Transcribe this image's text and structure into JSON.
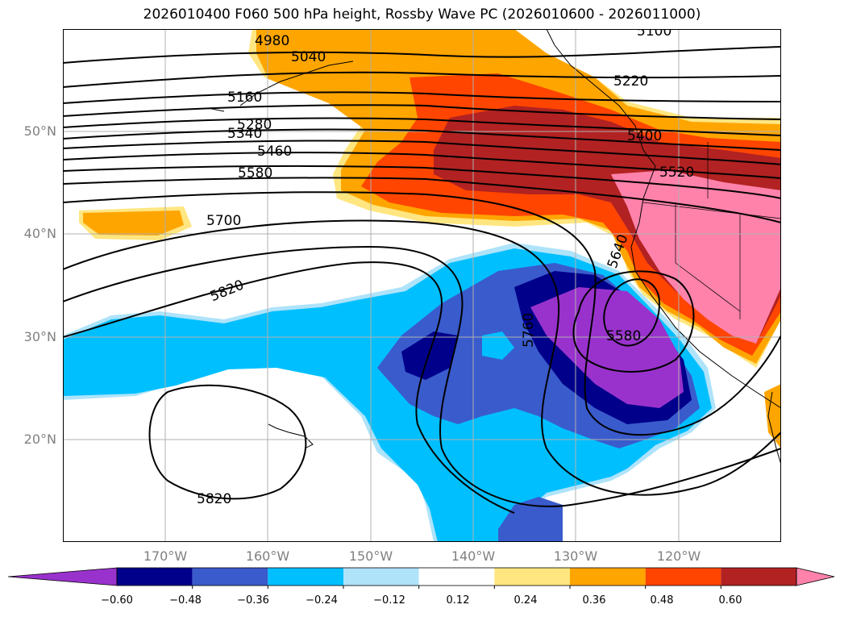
{
  "title": "2026010400 F060 500 hPa height, Rossby Wave PC (2026010600 - 2026011000)",
  "map": {
    "lat_range": [
      10,
      60
    ],
    "lon_range": [
      -180,
      -110
    ],
    "lat_labels": [
      "50°N",
      "40°N",
      "30°N",
      "20°N"
    ],
    "lon_labels": [
      "170°W",
      "160°W",
      "150°W",
      "140°W",
      "130°W",
      "120°W"
    ],
    "grid": true,
    "contour_labels": [
      "4980",
      "5040",
      "5100",
      "5160",
      "5220",
      "5280",
      "5340",
      "5400",
      "5460",
      "5520",
      "5580",
      "5640",
      "5700",
      "5760",
      "5820",
      "5580",
      "5820"
    ]
  },
  "colorbar": {
    "ticks": [
      "−0.60",
      "−0.48",
      "−0.36",
      "−0.24",
      "−0.12",
      "0.12",
      "0.24",
      "0.36",
      "0.48",
      "0.60"
    ],
    "colors": [
      "#9932cc",
      "#00008b",
      "#3a5bcc",
      "#00bfff",
      "#aee3fa",
      "#ffffff",
      "#ffe680",
      "#ffa500",
      "#ff4500",
      "#b22222",
      "#ff82ab"
    ]
  }
}
